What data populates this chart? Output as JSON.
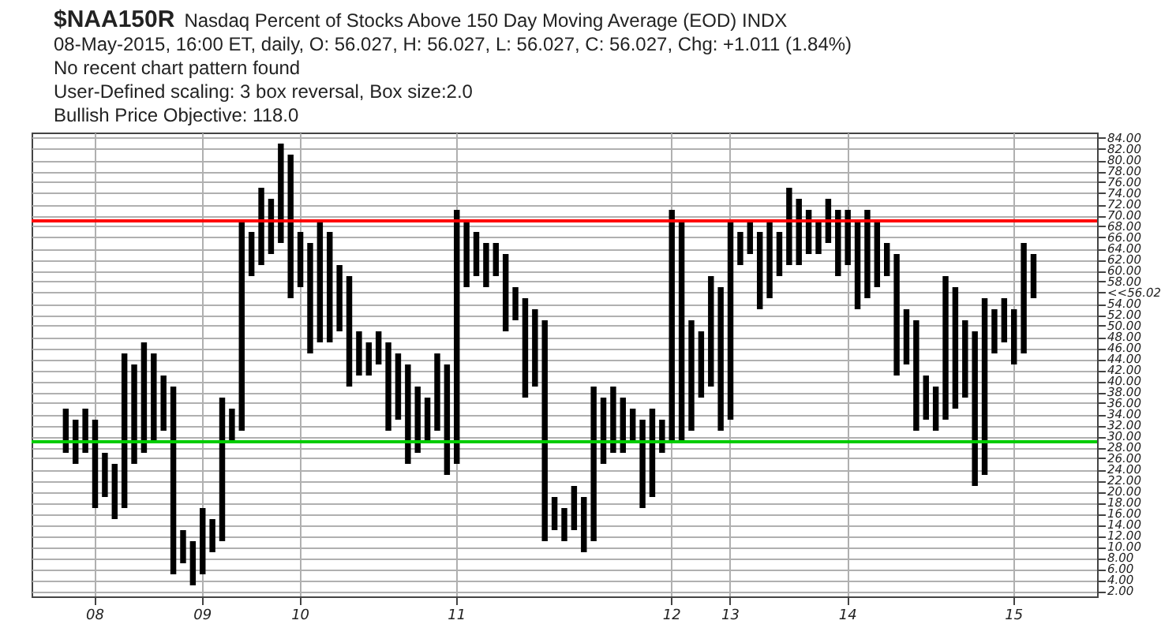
{
  "chart_data": {
    "type": "bar",
    "title": "$NAA150R",
    "subtitle": "Nasdaq Percent of Stocks Above 150 Day Moving Average (EOD)  INDX",
    "categories": [
      null,
      null,
      null,
      null,
      null,
      null,
      "08",
      null,
      null,
      null,
      null,
      null,
      null,
      null,
      null,
      null,
      null,
      "09",
      null,
      null,
      null,
      null,
      null,
      null,
      null,
      null,
      null,
      "10",
      null,
      null,
      null,
      null,
      null,
      null,
      null,
      null,
      null,
      null,
      null,
      null,
      null,
      null,
      null,
      "11",
      null,
      null,
      null,
      null,
      null,
      null,
      null,
      null,
      null,
      null,
      null,
      null,
      null,
      null,
      null,
      null,
      null,
      null,
      null,
      null,
      null,
      "12",
      null,
      null,
      null,
      null,
      null,
      "13",
      null,
      null,
      null,
      null,
      null,
      null,
      null,
      null,
      null,
      null,
      null,
      "14",
      null,
      null,
      null,
      null,
      null,
      null,
      null,
      null,
      null,
      null,
      null,
      null,
      null,
      null,
      null,
      null,
      "15",
      null,
      null,
      null,
      null,
      null,
      null,
      null,
      null
    ],
    "base": [
      null,
      null,
      null,
      27,
      25,
      27,
      17,
      19,
      15,
      17,
      25,
      27,
      29,
      31,
      5,
      7,
      3,
      5,
      9,
      11,
      29,
      31,
      59,
      61,
      63,
      65,
      55,
      57,
      45,
      47,
      47,
      49,
      39,
      41,
      41,
      43,
      31,
      33,
      25,
      27,
      29,
      31,
      23,
      25,
      57,
      59,
      57,
      59,
      49,
      51,
      37,
      39,
      11,
      13,
      11,
      13,
      9,
      11,
      25,
      27,
      27,
      29,
      17,
      19,
      27,
      29,
      29,
      31,
      37,
      39,
      31,
      33,
      61,
      63,
      53,
      55,
      59,
      61,
      61,
      63,
      63,
      65,
      59,
      61,
      53,
      55,
      57,
      59,
      41,
      43,
      31,
      33,
      31,
      33,
      35,
      37,
      21,
      23,
      45,
      47,
      43,
      45,
      55,
      null,
      null,
      null,
      null,
      null,
      null
    ],
    "values": [
      null,
      null,
      null,
      8,
      8,
      8,
      16,
      8,
      10,
      28,
      18,
      20,
      16,
      10,
      34,
      6,
      8,
      12,
      6,
      26,
      6,
      38,
      8,
      14,
      10,
      18,
      26,
      10,
      20,
      22,
      20,
      12,
      20,
      8,
      6,
      6,
      16,
      12,
      18,
      12,
      8,
      14,
      20,
      46,
      12,
      8,
      8,
      6,
      14,
      6,
      18,
      14,
      40,
      6,
      6,
      8,
      10,
      28,
      12,
      12,
      10,
      6,
      16,
      16,
      6,
      42,
      40,
      20,
      12,
      20,
      26,
      36,
      6,
      6,
      14,
      14,
      8,
      14,
      12,
      8,
      6,
      8,
      12,
      10,
      16,
      16,
      12,
      6,
      22,
      10,
      20,
      8,
      8,
      26,
      22,
      14,
      28,
      32,
      8,
      8,
      10,
      20,
      8,
      null,
      null,
      null,
      null,
      null,
      null
    ],
    "color": "#000000",
    "ylim": [
      1,
      85
    ],
    "yticks": [
      {
        "value": 2,
        "label": "2.00"
      },
      {
        "value": 4,
        "label": "4.00"
      },
      {
        "value": 6,
        "label": "6.00"
      },
      {
        "value": 8,
        "label": "8.00"
      },
      {
        "value": 10,
        "label": "10.00"
      },
      {
        "value": 12,
        "label": "12.00"
      },
      {
        "value": 14,
        "label": "14.00"
      },
      {
        "value": 16,
        "label": "16.00"
      },
      {
        "value": 18,
        "label": "18.00"
      },
      {
        "value": 20,
        "label": "20.00"
      },
      {
        "value": 22,
        "label": "22.00"
      },
      {
        "value": 24,
        "label": "24.00"
      },
      {
        "value": 26,
        "label": "26.00"
      },
      {
        "value": 28,
        "label": "28.00"
      },
      {
        "value": 30,
        "label": "30.00"
      },
      {
        "value": 32,
        "label": "32.00"
      },
      {
        "value": 34,
        "label": "34.00"
      },
      {
        "value": 36,
        "label": "36.00"
      },
      {
        "value": 38,
        "label": "38.00"
      },
      {
        "value": 40,
        "label": "40.00"
      },
      {
        "value": 42,
        "label": "42.00"
      },
      {
        "value": 44,
        "label": "44.00"
      },
      {
        "value": 46,
        "label": "46.00"
      },
      {
        "value": 48,
        "label": "48.00"
      },
      {
        "value": 50,
        "label": "50.00"
      },
      {
        "value": 52,
        "label": "52.00"
      },
      {
        "value": 54,
        "label": "54.00"
      },
      {
        "value": 56.02,
        "label": "<<56.02"
      },
      {
        "value": 58,
        "label": "58.00"
      },
      {
        "value": 60,
        "label": "60.00"
      },
      {
        "value": 62,
        "label": "62.00"
      },
      {
        "value": 64,
        "label": "64.00"
      },
      {
        "value": 66,
        "label": "66.00"
      },
      {
        "value": 68,
        "label": "68.00"
      },
      {
        "value": 70,
        "label": "70.00"
      },
      {
        "value": 72,
        "label": "72.00"
      },
      {
        "value": 74,
        "label": "74.00"
      },
      {
        "value": 76,
        "label": "76.00"
      },
      {
        "value": 78,
        "label": "78.00"
      },
      {
        "value": 80,
        "label": "80.00"
      },
      {
        "value": 82,
        "label": "82.00"
      },
      {
        "value": 84,
        "label": "84.00"
      }
    ],
    "grid": true,
    "ref_lines": [
      {
        "axis": "y",
        "value": 69,
        "color": "#ff0000"
      },
      {
        "axis": "y",
        "value": 29,
        "color": "#00cc00"
      }
    ],
    "annotations": [
      "08-May-2015, 16:00 ET, daily, O: 56.027, H: 56.027, L: 56.027, C: 56.027, Chg: +1.011 (1.84%)",
      "No recent chart pattern found",
      "User-Defined scaling: 3 box reversal, Box size:2.0",
      "Bullish Price Objective: 118.0"
    ]
  }
}
